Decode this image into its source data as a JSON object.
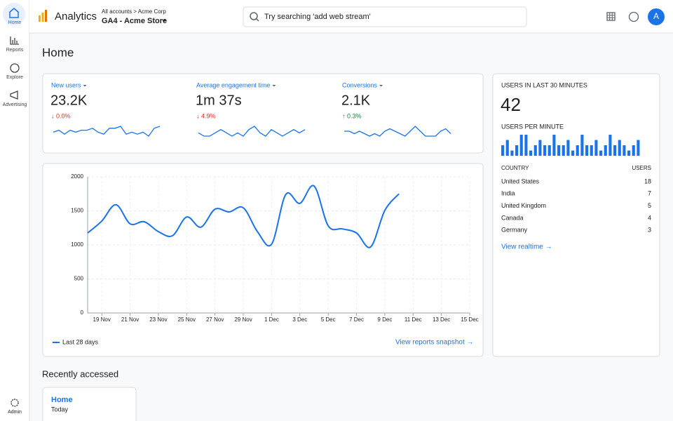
{
  "nav": {
    "items": [
      "Home",
      "Reports",
      "Explore",
      "Advertising"
    ],
    "admin": "Admin"
  },
  "header": {
    "product": "Analytics",
    "breadcrumb": "All accounts > Acme Corp",
    "property": "GA4 - Acme Store",
    "search_placeholder": "Try searching 'add web stream'",
    "avatar": "A"
  },
  "page_title": "Home",
  "metrics": [
    {
      "label": "New users",
      "value": "23.2K",
      "change": "↓ 0.0%",
      "color": "#d93025",
      "sparkline": [
        5,
        6,
        4,
        6,
        5,
        6,
        6,
        7,
        5,
        4,
        7,
        7,
        8,
        4,
        5,
        4,
        5,
        3,
        7,
        8
      ]
    },
    {
      "label": "Average engagement time",
      "value": "1m 37s",
      "change": "↓ 4.9%",
      "color": "#d93025",
      "sparkline": [
        6,
        5,
        5,
        6,
        7,
        6,
        5,
        6,
        5,
        7,
        8,
        6,
        5,
        7,
        6,
        5,
        6,
        7,
        6,
        7
      ]
    },
    {
      "label": "Conversions",
      "value": "2.1K",
      "change": "↑ 0.3%",
      "color": "#188038",
      "sparkline": [
        6,
        6,
        5,
        6,
        5,
        4,
        5,
        4,
        6,
        7,
        6,
        5,
        4,
        6,
        8,
        6,
        4,
        4,
        4,
        6,
        7,
        5
      ]
    }
  ],
  "chart_data": {
    "type": "line",
    "categories": [
      null,
      "19 Nov",
      null,
      "21 Nov",
      null,
      "23 Nov",
      null,
      "25 Nov",
      null,
      "27 Nov",
      null,
      "29 Nov",
      null,
      "1 Dec",
      null,
      "3 Dec",
      null,
      "5 Dec",
      null,
      "7 Dec",
      null,
      "9 Dec",
      null,
      "11 Dec",
      null,
      "13 Dec",
      null,
      "15 Dec"
    ],
    "series": [
      {
        "name": "Last 28 days",
        "color": "#1a73e8",
        "values": [
          1175,
          1350,
          1590,
          1310,
          1340,
          1195,
          1135,
          1410,
          1260,
          1525,
          1485,
          1545,
          1195,
          1010,
          1740,
          1610,
          1865,
          1280,
          1235,
          1175,
          970,
          1505,
          1750,
          null,
          null,
          null,
          null,
          null
        ]
      }
    ],
    "ylim": [
      0,
      2000
    ],
    "yticks": [
      0,
      500,
      1000,
      1500,
      2000
    ],
    "grid": true,
    "link": "View reports snapshot →"
  },
  "realtime": {
    "title": "USERS IN LAST 30 MINUTES",
    "value": "42",
    "per_minute_label": "USERS PER MINUTE",
    "per_minute": [
      2,
      3,
      1,
      2,
      4,
      4,
      1,
      2,
      3,
      2,
      2,
      4,
      2,
      2,
      3,
      1,
      2,
      4,
      2,
      2,
      3,
      1,
      2,
      4,
      2,
      3,
      2,
      1,
      2,
      3
    ],
    "columns": [
      "COUNTRY",
      "USERS"
    ],
    "rows": [
      [
        "United States",
        "18"
      ],
      [
        "India",
        "7"
      ],
      [
        "United Kingdom",
        "5"
      ],
      [
        "Canada",
        "4"
      ],
      [
        "Germany",
        "3"
      ]
    ],
    "link": "View realtime →"
  },
  "recent": {
    "title": "Recently accessed",
    "card_title": "Home",
    "card_subtitle": "Today"
  }
}
